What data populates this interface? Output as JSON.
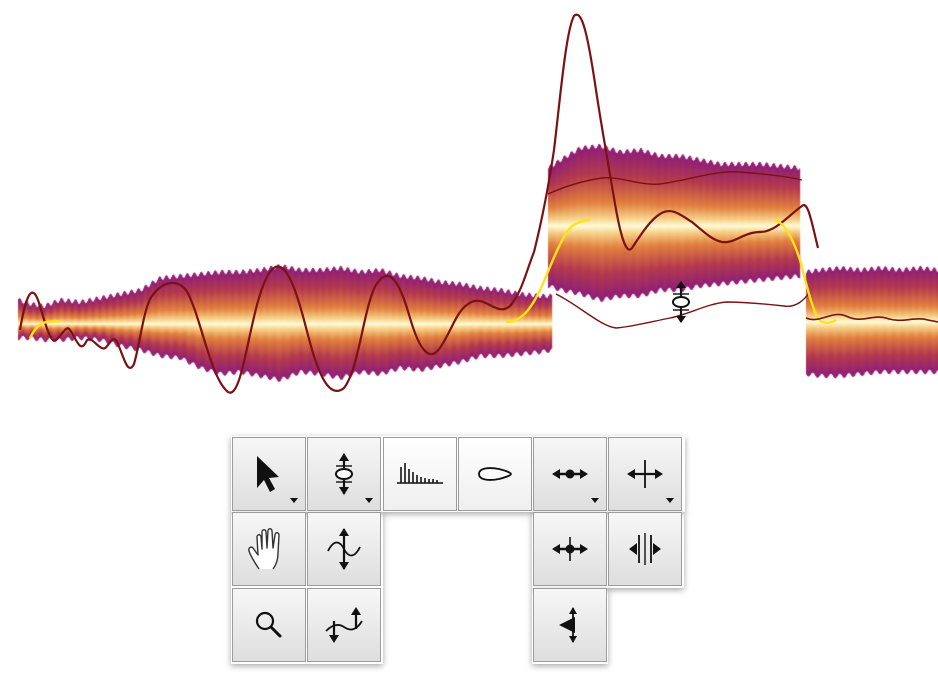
{
  "editor": {
    "blob_colors": {
      "core": "#fffbd8",
      "inner": "#f7d28a",
      "mid": "#e2803f",
      "outer": "#b43a4e",
      "edge": "#8e1e78"
    },
    "pitch_curve_color": "#7a1212",
    "center_line_color": "#ffe21a"
  },
  "toolbar": {
    "tools": [
      {
        "id": "main-tool",
        "icon": "arrow-cursor-icon",
        "has_submenu": true,
        "active": true
      },
      {
        "id": "pitch-tool",
        "icon": "pitch-tool-icon",
        "has_submenu": true,
        "active": false
      },
      {
        "id": "formant-tool",
        "icon": "formant-tool-icon",
        "has_submenu": false,
        "active": true
      },
      {
        "id": "amplitude-tool",
        "icon": "amplitude-tool-icon",
        "has_submenu": false,
        "active": true
      },
      {
        "id": "timing-tool",
        "icon": "timing-tool-icon",
        "has_submenu": true,
        "active": false
      },
      {
        "id": "separation-tool",
        "icon": "separation-tool-icon",
        "has_submenu": true,
        "active": false
      },
      {
        "id": "scroll-tool",
        "icon": "hand-icon",
        "has_submenu": false,
        "active": false
      },
      {
        "id": "pitch-modulation-tool",
        "icon": "pitch-modulation-icon",
        "has_submenu": false,
        "active": false
      },
      {
        "id": "zoom-tool",
        "icon": "magnifier-icon",
        "has_submenu": false,
        "active": false
      },
      {
        "id": "pitch-drift-tool",
        "icon": "pitch-drift-icon",
        "has_submenu": false,
        "active": false
      },
      {
        "id": "move-tool",
        "icon": "move-tool-icon",
        "has_submenu": false,
        "active": false
      },
      {
        "id": "note-separation-tool",
        "icon": "note-separation-icon",
        "has_submenu": false,
        "active": false
      },
      {
        "id": "sibilant-tool",
        "icon": "sibilant-tool-icon",
        "has_submenu": false,
        "active": false
      }
    ]
  }
}
